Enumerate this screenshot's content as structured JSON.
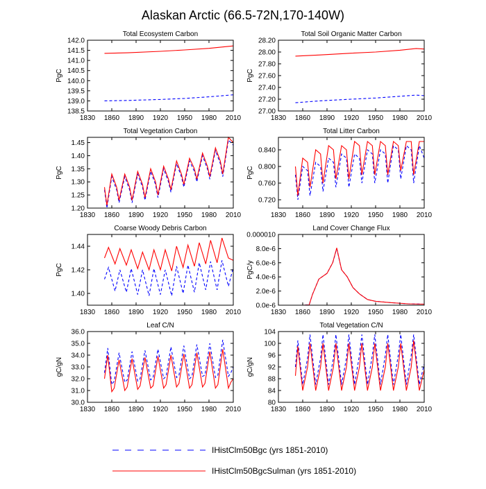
{
  "title": "Alaskan Arctic (66.5-72N,170-140W)",
  "colors": {
    "series1": "#0000ff",
    "series2": "#ff0000",
    "axis": "#000000"
  },
  "legend": [
    {
      "label": "IHistClm50Bgc (yrs 1851-2010)",
      "color": "#0000ff",
      "dash": true
    },
    {
      "label": "IHistClm50BgcSulman (yrs 1851-2010)",
      "color": "#ff0000",
      "dash": false
    }
  ],
  "chart_data": [
    {
      "type": "line",
      "title": "Total Ecosystem Carbon",
      "ylabel": "PgC",
      "xlim": [
        1830,
        2010
      ],
      "xticks": [
        "1830",
        "1860",
        "1890",
        "1920",
        "1950",
        "1980",
        "2010"
      ],
      "ylim": [
        138.5,
        142.0
      ],
      "yticks": [
        "138.5",
        "139.0",
        "139.5",
        "140.0",
        "140.5",
        "141.0",
        "141.5",
        "142.0"
      ],
      "series": [
        {
          "x": [
            1851,
            1880,
            1920,
            1950,
            1980,
            2010
          ],
          "values": [
            139.0,
            139.02,
            139.07,
            139.12,
            139.2,
            139.3
          ]
        },
        {
          "x": [
            1851,
            1880,
            1920,
            1950,
            1980,
            2010
          ],
          "values": [
            141.35,
            141.38,
            141.45,
            141.52,
            141.6,
            141.72
          ]
        }
      ]
    },
    {
      "type": "line",
      "title": "Total Soil Organic Matter Carbon",
      "ylabel": "PgC",
      "xlim": [
        1830,
        2010
      ],
      "xticks": [
        "1830",
        "1860",
        "1890",
        "1920",
        "1950",
        "1980",
        "2010"
      ],
      "ylim": [
        27.0,
        28.2
      ],
      "yticks": [
        "27.00",
        "27.20",
        "27.40",
        "27.60",
        "27.80",
        "28.00",
        "28.20"
      ],
      "series": [
        {
          "x": [
            1851,
            1880,
            1920,
            1950,
            1980,
            2000,
            2010
          ],
          "values": [
            27.14,
            27.17,
            27.2,
            27.22,
            27.25,
            27.27,
            27.26
          ]
        },
        {
          "x": [
            1851,
            1880,
            1920,
            1950,
            1980,
            2000,
            2010
          ],
          "values": [
            27.93,
            27.95,
            27.98,
            28.0,
            28.03,
            28.06,
            28.05
          ]
        }
      ]
    },
    {
      "type": "line",
      "title": "Total Vegetation Carbon",
      "ylabel": "PgC",
      "xlim": [
        1830,
        2010
      ],
      "xticks": [
        "1830",
        "1860",
        "1890",
        "1920",
        "1950",
        "1980",
        "2010"
      ],
      "ylim": [
        1.2,
        1.47
      ],
      "yticks": [
        "1.20",
        "1.25",
        "1.30",
        "1.35",
        "1.40",
        "1.45"
      ],
      "series": [
        {
          "x": [
            1851,
            1854,
            1860,
            1866,
            1869,
            1876,
            1882,
            1885,
            1892,
            1898,
            1901,
            1908,
            1914,
            1917,
            1924,
            1930,
            1933,
            1940,
            1946,
            1949,
            1956,
            1962,
            1965,
            1972,
            1978,
            1981,
            1988,
            1994,
            1997,
            2004,
            2010
          ],
          "values": [
            1.27,
            1.2,
            1.32,
            1.27,
            1.22,
            1.32,
            1.27,
            1.22,
            1.33,
            1.28,
            1.23,
            1.34,
            1.29,
            1.24,
            1.35,
            1.3,
            1.26,
            1.37,
            1.32,
            1.28,
            1.38,
            1.34,
            1.3,
            1.4,
            1.35,
            1.31,
            1.42,
            1.37,
            1.32,
            1.46,
            1.44
          ]
        },
        {
          "x": [
            1851,
            1854,
            1860,
            1866,
            1869,
            1876,
            1882,
            1885,
            1892,
            1898,
            1901,
            1908,
            1914,
            1917,
            1924,
            1930,
            1933,
            1940,
            1946,
            1949,
            1956,
            1962,
            1965,
            1972,
            1978,
            1981,
            1988,
            1994,
            1997,
            2004,
            2010
          ],
          "values": [
            1.28,
            1.21,
            1.33,
            1.28,
            1.23,
            1.33,
            1.28,
            1.23,
            1.34,
            1.29,
            1.24,
            1.35,
            1.3,
            1.25,
            1.36,
            1.31,
            1.27,
            1.38,
            1.33,
            1.29,
            1.39,
            1.35,
            1.31,
            1.41,
            1.36,
            1.32,
            1.43,
            1.38,
            1.33,
            1.47,
            1.45
          ]
        }
      ]
    },
    {
      "type": "line",
      "title": "Total Litter Carbon",
      "ylabel": "PgC",
      "xlim": [
        1830,
        2010
      ],
      "xticks": [
        "1830",
        "1860",
        "1890",
        "1920",
        "1950",
        "1980",
        "2010"
      ],
      "ylim": [
        0.7,
        0.87
      ],
      "yticks": [
        "0.720",
        "0.760",
        "0.800",
        "0.840"
      ],
      "series": [
        {
          "x": [
            1851,
            1854,
            1860,
            1866,
            1869,
            1876,
            1882,
            1885,
            1892,
            1898,
            1901,
            1908,
            1914,
            1917,
            1924,
            1930,
            1933,
            1940,
            1946,
            1949,
            1956,
            1962,
            1965,
            1972,
            1978,
            1981,
            1988,
            1994,
            1997,
            2004,
            2010
          ],
          "values": [
            0.78,
            0.72,
            0.8,
            0.79,
            0.73,
            0.81,
            0.8,
            0.74,
            0.82,
            0.81,
            0.75,
            0.83,
            0.82,
            0.75,
            0.83,
            0.82,
            0.76,
            0.84,
            0.83,
            0.76,
            0.84,
            0.83,
            0.76,
            0.85,
            0.84,
            0.77,
            0.85,
            0.84,
            0.76,
            0.85,
            0.82
          ]
        },
        {
          "x": [
            1851,
            1854,
            1860,
            1866,
            1869,
            1876,
            1882,
            1885,
            1892,
            1898,
            1901,
            1908,
            1914,
            1917,
            1924,
            1930,
            1933,
            1940,
            1946,
            1949,
            1956,
            1962,
            1965,
            1972,
            1978,
            1981,
            1988,
            1994,
            1997,
            2004,
            2010
          ],
          "values": [
            0.8,
            0.73,
            0.82,
            0.81,
            0.75,
            0.84,
            0.83,
            0.76,
            0.85,
            0.84,
            0.77,
            0.85,
            0.84,
            0.77,
            0.86,
            0.85,
            0.78,
            0.86,
            0.85,
            0.78,
            0.86,
            0.85,
            0.78,
            0.86,
            0.85,
            0.79,
            0.86,
            0.86,
            0.78,
            0.86,
            0.86
          ]
        }
      ]
    },
    {
      "type": "line",
      "title": "Coarse Woody Debris Carbon",
      "ylabel": "PgC",
      "xlim": [
        1830,
        2010
      ],
      "xticks": [
        "1830",
        "1860",
        "1890",
        "1920",
        "1950",
        "1980",
        "2010"
      ],
      "ylim": [
        1.39,
        1.45
      ],
      "yticks": [
        "1.40",
        "1.42",
        "1.44"
      ],
      "series": [
        {
          "x": [
            1851,
            1856,
            1864,
            1870,
            1878,
            1884,
            1892,
            1898,
            1906,
            1912,
            1920,
            1926,
            1934,
            1940,
            1948,
            1954,
            1962,
            1968,
            1976,
            1982,
            1990,
            1996,
            2004,
            2010
          ],
          "values": [
            1.412,
            1.422,
            1.402,
            1.42,
            1.401,
            1.421,
            1.399,
            1.42,
            1.398,
            1.421,
            1.399,
            1.42,
            1.398,
            1.423,
            1.4,
            1.424,
            1.401,
            1.426,
            1.403,
            1.427,
            1.403,
            1.428,
            1.406,
            1.422
          ]
        },
        {
          "x": [
            1851,
            1856,
            1864,
            1870,
            1878,
            1884,
            1892,
            1898,
            1906,
            1912,
            1920,
            1926,
            1934,
            1940,
            1948,
            1954,
            1962,
            1968,
            1976,
            1982,
            1990,
            1996,
            2004,
            2010
          ],
          "values": [
            1.43,
            1.439,
            1.425,
            1.438,
            1.424,
            1.437,
            1.421,
            1.435,
            1.42,
            1.437,
            1.42,
            1.437,
            1.419,
            1.44,
            1.422,
            1.441,
            1.423,
            1.443,
            1.425,
            1.445,
            1.426,
            1.447,
            1.43,
            1.428
          ]
        }
      ]
    },
    {
      "type": "line",
      "title": "Land Cover Change Flux",
      "ylabel": "PgC/y",
      "xlim": [
        1830,
        2010
      ],
      "xticks": [
        "1830",
        "1860",
        "1890",
        "1920",
        "1950",
        "1980",
        "2010"
      ],
      "ylim": [
        0,
        1e-05
      ],
      "yticks": [
        "0.0e-6",
        "2.0e-6",
        "4.0e-6",
        "6.0e-6",
        "8.0e-6",
        "0.000010"
      ],
      "series": [
        {
          "x": [
            1851,
            1860,
            1868,
            1872,
            1880,
            1890,
            1897,
            1902,
            1908,
            1915,
            1922,
            1930,
            1940,
            1950,
            1970,
            1990,
            2010
          ],
          "values": [
            0,
            0,
            5e-08,
            1.5e-06,
            3.7e-06,
            4.5e-06,
            6e-06,
            8e-06,
            5e-06,
            4e-06,
            2.5e-06,
            1.6e-06,
            8e-07,
            5.5e-07,
            3.5e-07,
            2e-07,
            1.5e-07
          ]
        },
        {
          "x": [
            1851,
            1860,
            1868,
            1872,
            1880,
            1890,
            1897,
            1902,
            1908,
            1915,
            1922,
            1930,
            1940,
            1950,
            1970,
            1990,
            2010
          ],
          "values": [
            0,
            0,
            5e-08,
            1.5e-06,
            3.7e-06,
            4.5e-06,
            6e-06,
            8.1e-06,
            5e-06,
            4e-06,
            2.5e-06,
            1.6e-06,
            8e-07,
            5.5e-07,
            3.5e-07,
            2e-07,
            1.5e-07
          ]
        }
      ]
    },
    {
      "type": "line",
      "title": "Leaf C/N",
      "ylabel": "gC/gN",
      "xlim": [
        1830,
        2010
      ],
      "xticks": [
        "1830",
        "1860",
        "1890",
        "1920",
        "1950",
        "1980",
        "2010"
      ],
      "ylim": [
        30.0,
        36.0
      ],
      "yticks": [
        "30.0",
        "31.0",
        "32.0",
        "33.0",
        "34.0",
        "35.0",
        "36.0"
      ],
      "series": [
        {
          "x": [
            1851,
            1855,
            1860,
            1863,
            1869,
            1876,
            1879,
            1885,
            1892,
            1895,
            1901,
            1908,
            1911,
            1917,
            1924,
            1927,
            1933,
            1940,
            1943,
            1949,
            1956,
            1959,
            1965,
            1972,
            1975,
            1981,
            1988,
            1991,
            1997,
            2004,
            2007,
            2010
          ],
          "values": [
            32.5,
            34.6,
            31.5,
            31.8,
            34.2,
            31.7,
            31.9,
            34.3,
            31.8,
            32.0,
            34.4,
            31.9,
            32.1,
            34.5,
            32.0,
            32.2,
            34.7,
            32.1,
            32.3,
            34.8,
            32.0,
            32.2,
            34.9,
            32.2,
            32.3,
            35.0,
            32.1,
            32.3,
            35.3,
            32.2,
            32.5,
            33.0
          ]
        },
        {
          "x": [
            1851,
            1855,
            1860,
            1863,
            1869,
            1876,
            1879,
            1885,
            1892,
            1895,
            1901,
            1908,
            1911,
            1917,
            1924,
            1927,
            1933,
            1940,
            1943,
            1949,
            1956,
            1959,
            1965,
            1972,
            1975,
            1981,
            1988,
            1991,
            1997,
            2004,
            2007,
            2010
          ],
          "values": [
            32.0,
            34.0,
            30.9,
            31.2,
            33.6,
            31.0,
            31.3,
            33.7,
            31.1,
            31.4,
            33.8,
            31.2,
            31.4,
            33.9,
            31.2,
            31.5,
            34.0,
            31.3,
            31.6,
            34.1,
            31.2,
            31.5,
            34.2,
            31.3,
            31.6,
            34.3,
            31.2,
            31.5,
            34.5,
            31.2,
            31.7,
            32.0
          ]
        }
      ]
    },
    {
      "type": "line",
      "title": "Total Vegetation C/N",
      "ylabel": "gC/gN",
      "xlim": [
        1830,
        2010
      ],
      "xticks": [
        "1830",
        "1860",
        "1890",
        "1920",
        "1950",
        "1980",
        "2010"
      ],
      "ylim": [
        80,
        104
      ],
      "yticks": [
        "80",
        "84",
        "88",
        "92",
        "96",
        "100",
        "104"
      ],
      "series": [
        {
          "x": [
            1851,
            1854,
            1860,
            1866,
            1869,
            1876,
            1882,
            1885,
            1892,
            1898,
            1901,
            1908,
            1914,
            1917,
            1924,
            1930,
            1933,
            1940,
            1946,
            1949,
            1956,
            1962,
            1965,
            1972,
            1978,
            1981,
            1988,
            1994,
            1997,
            2004,
            2010
          ],
          "values": [
            92,
            101,
            86,
            95,
            103,
            86,
            95,
            103,
            86,
            95,
            103,
            86,
            95,
            103,
            86,
            96,
            103,
            86,
            96,
            103,
            86,
            96,
            103,
            86,
            96,
            103,
            86,
            96,
            103,
            86,
            93
          ]
        },
        {
          "x": [
            1851,
            1854,
            1860,
            1866,
            1869,
            1876,
            1882,
            1885,
            1892,
            1898,
            1901,
            1908,
            1914,
            1917,
            1924,
            1930,
            1933,
            1940,
            1946,
            1949,
            1956,
            1962,
            1965,
            1972,
            1978,
            1981,
            1988,
            1994,
            1997,
            2004,
            2010
          ],
          "values": [
            89,
            99,
            84,
            92,
            100,
            84,
            92,
            100,
            84,
            92,
            100,
            84,
            92,
            100,
            84,
            92,
            100,
            84,
            92,
            100,
            84,
            92,
            100,
            84,
            92,
            100,
            84,
            92,
            101,
            84,
            91
          ]
        }
      ]
    }
  ]
}
